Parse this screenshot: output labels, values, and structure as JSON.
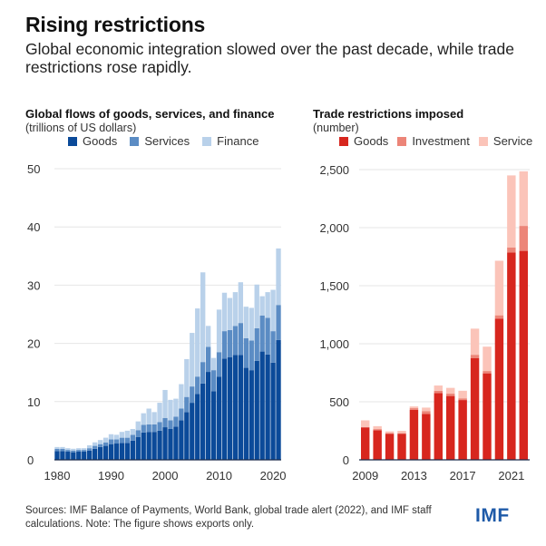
{
  "header": {
    "title": "Rising restrictions",
    "subtitle": "Global economic integration slowed over the past decade, while trade restrictions rose rapidly."
  },
  "footer": {
    "sources": "Sources: IMF Balance of Payments, World Bank, global trade alert (2022), and IMF staff calculations. Note: The figure shows exports only.",
    "logo": "IMF"
  },
  "chart_data": [
    {
      "type": "bar",
      "stacked": true,
      "title": "Global flows of goods, services, and finance",
      "subtitle": "(trillions of US dollars)",
      "xlabel": "",
      "ylabel": "",
      "ylim": [
        0,
        50
      ],
      "yticks": [
        0,
        10,
        20,
        30,
        40,
        50
      ],
      "ytick_labels": [
        "0",
        "10",
        "20",
        "30",
        "40",
        "50"
      ],
      "xtick_labels": [
        "1980",
        "1990",
        "2000",
        "2010",
        "2020"
      ],
      "grid": true,
      "legend_position": "top",
      "categories": [
        1980,
        1981,
        1982,
        1983,
        1984,
        1985,
        1986,
        1987,
        1988,
        1989,
        1990,
        1991,
        1992,
        1993,
        1994,
        1995,
        1996,
        1997,
        1998,
        1999,
        2000,
        2001,
        2002,
        2003,
        2004,
        2005,
        2006,
        2007,
        2008,
        2009,
        2010,
        2011,
        2012,
        2013,
        2014,
        2015,
        2016,
        2017,
        2018,
        2019,
        2020,
        2021
      ],
      "series": [
        {
          "name": "Goods",
          "color": "#0b4a99",
          "values": [
            1.5,
            1.5,
            1.4,
            1.3,
            1.4,
            1.4,
            1.6,
            1.9,
            2.2,
            2.4,
            2.7,
            2.8,
            2.9,
            2.9,
            3.3,
            3.9,
            4.7,
            4.8,
            4.8,
            5.0,
            5.6,
            5.3,
            5.7,
            6.8,
            8.2,
            9.8,
            11.3,
            13.1,
            15.1,
            11.8,
            14.3,
            17.4,
            17.6,
            18.0,
            18.0,
            15.8,
            15.4,
            17.0,
            18.6,
            18.1,
            16.7,
            20.6
          ]
        },
        {
          "name": "Services",
          "color": "#5b8cc4",
          "values": [
            0.4,
            0.4,
            0.3,
            0.3,
            0.3,
            0.3,
            0.4,
            0.5,
            0.5,
            0.6,
            0.8,
            0.7,
            0.9,
            0.9,
            1.0,
            1.2,
            1.3,
            1.3,
            1.3,
            1.5,
            1.6,
            1.5,
            1.7,
            2.0,
            2.6,
            2.8,
            3.0,
            3.7,
            4.3,
            3.6,
            4.2,
            4.7,
            4.7,
            5.0,
            5.5,
            5.1,
            5.1,
            5.6,
            6.2,
            6.3,
            5.4,
            6.0
          ]
        },
        {
          "name": "Finance",
          "color": "#b9d1ea",
          "values": [
            0.3,
            0.3,
            0.3,
            0.3,
            0.3,
            0.3,
            0.5,
            0.6,
            0.7,
            0.8,
            0.9,
            0.8,
            1.0,
            1.2,
            1.0,
            1.5,
            2.0,
            2.7,
            2.1,
            3.3,
            4.8,
            3.5,
            3.1,
            4.2,
            6.5,
            9.2,
            11.7,
            15.4,
            3.6,
            2.1,
            7.3,
            6.6,
            5.5,
            5.8,
            7.0,
            5.4,
            5.6,
            7.5,
            3.3,
            4.4,
            7.1,
            9.7
          ]
        }
      ]
    },
    {
      "type": "bar",
      "stacked": true,
      "title": "Trade restrictions imposed",
      "subtitle": "(number)",
      "xlabel": "",
      "ylabel": "",
      "ylim": [
        0,
        2500
      ],
      "yticks": [
        0,
        500,
        1000,
        1500,
        2000,
        2500
      ],
      "ytick_labels": [
        "0",
        "500",
        "1,000",
        "1,500",
        "2,000",
        "2,500"
      ],
      "xtick_labels": [
        "2009",
        "2013",
        "2017",
        "2021"
      ],
      "grid": true,
      "legend_position": "top",
      "categories": [
        2009,
        2010,
        2011,
        2012,
        2013,
        2014,
        2015,
        2016,
        2017,
        2018,
        2019,
        2020,
        2021,
        2022
      ],
      "series": [
        {
          "name": "Goods",
          "color": "#d7261e",
          "values": [
            280,
            255,
            225,
            225,
            430,
            395,
            575,
            550,
            515,
            875,
            745,
            1215,
            1785,
            1800
          ]
        },
        {
          "name": "Investment",
          "color": "#ec8578",
          "values": [
            0,
            10,
            5,
            5,
            15,
            25,
            20,
            20,
            15,
            30,
            20,
            30,
            45,
            215
          ]
        },
        {
          "name": "Service",
          "color": "#fbc4b9",
          "values": [
            60,
            25,
            15,
            20,
            15,
            30,
            45,
            50,
            65,
            225,
            210,
            470,
            620,
            470
          ]
        }
      ]
    }
  ]
}
